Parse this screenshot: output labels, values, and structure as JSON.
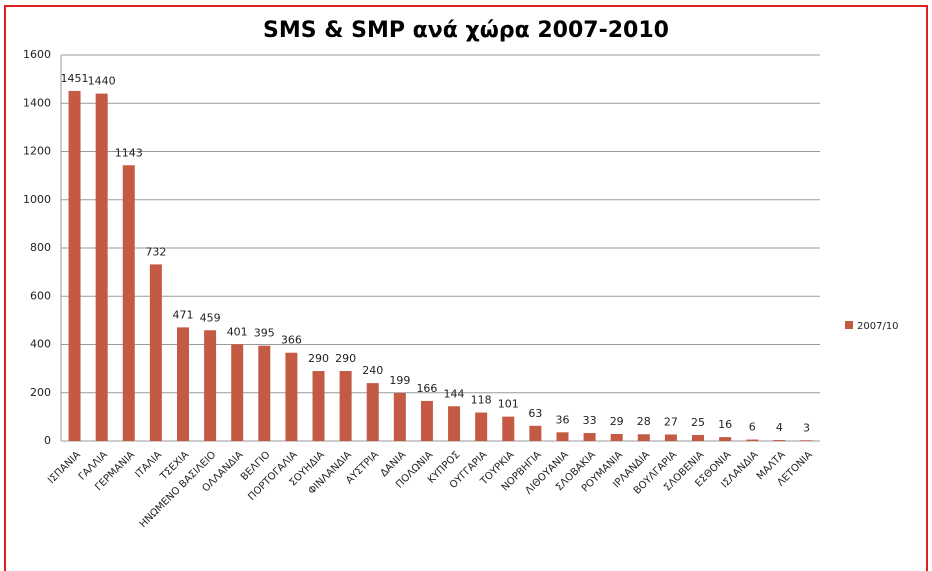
{
  "chart_data": {
    "type": "bar",
    "title": "SMS & SMP ανά χώρα 2007-2010",
    "categories": [
      "ΙΣΠΑΝΙΑ",
      "ΓΑΛΛΙΑ",
      "ΓΕΡΜΑΝΙΑ",
      "ΙΤΑΛΙΑ",
      "ΤΣΕΧΙΑ",
      "ΗΝΩΜΕΝΟ ΒΑΣΙΛΕΙΟ",
      "ΟΛΛΑΝΔΙΑ",
      "ΒΕΛΓΙΟ",
      "ΠΟΡΤΟΓΑΛΙΑ",
      "ΣΟΥΗΔΙΑ",
      "ΦΙΝΛΑΝΔΙΑ",
      "ΑΥΣΤΡΙΑ",
      "ΔΑΝΙΑ",
      "ΠΟΛΩΝΙΑ",
      "ΚΥΠΡΟΣ",
      "ΟΥΓΓΑΡΙΑ",
      "ΤΟΥΡΚΙΑ",
      "ΝΟΡΒΗΓΙΑ",
      "ΛΙΘΟΥΑΝΙΑ",
      "ΣΛΟΒΑΚΙΑ",
      "ΡΟΥΜΑΝΙΑ",
      "ΙΡΛΑΝΔΙΑ",
      "ΒΟΥΛΓΑΡΙΑ",
      "ΣΛΟΒΕΝΙΑ",
      "ΕΣΘΟΝΙΑ",
      "ΙΣΛΑΝΔΙΑ",
      "ΜΑΛΤΑ",
      "ΛΕΤΟΝΙΑ"
    ],
    "series": [
      {
        "name": "2007/10",
        "color": "#c55a44",
        "values": [
          1451,
          1440,
          1143,
          732,
          471,
          459,
          401,
          395,
          366,
          290,
          290,
          240,
          199,
          166,
          144,
          118,
          101,
          63,
          36,
          33,
          29,
          28,
          27,
          25,
          16,
          6,
          4,
          3
        ]
      }
    ],
    "ylim": [
      0,
      1600
    ],
    "yticks": [
      0,
      200,
      400,
      600,
      800,
      1000,
      1200,
      1400,
      1600
    ],
    "grid": true,
    "legend": "right"
  }
}
